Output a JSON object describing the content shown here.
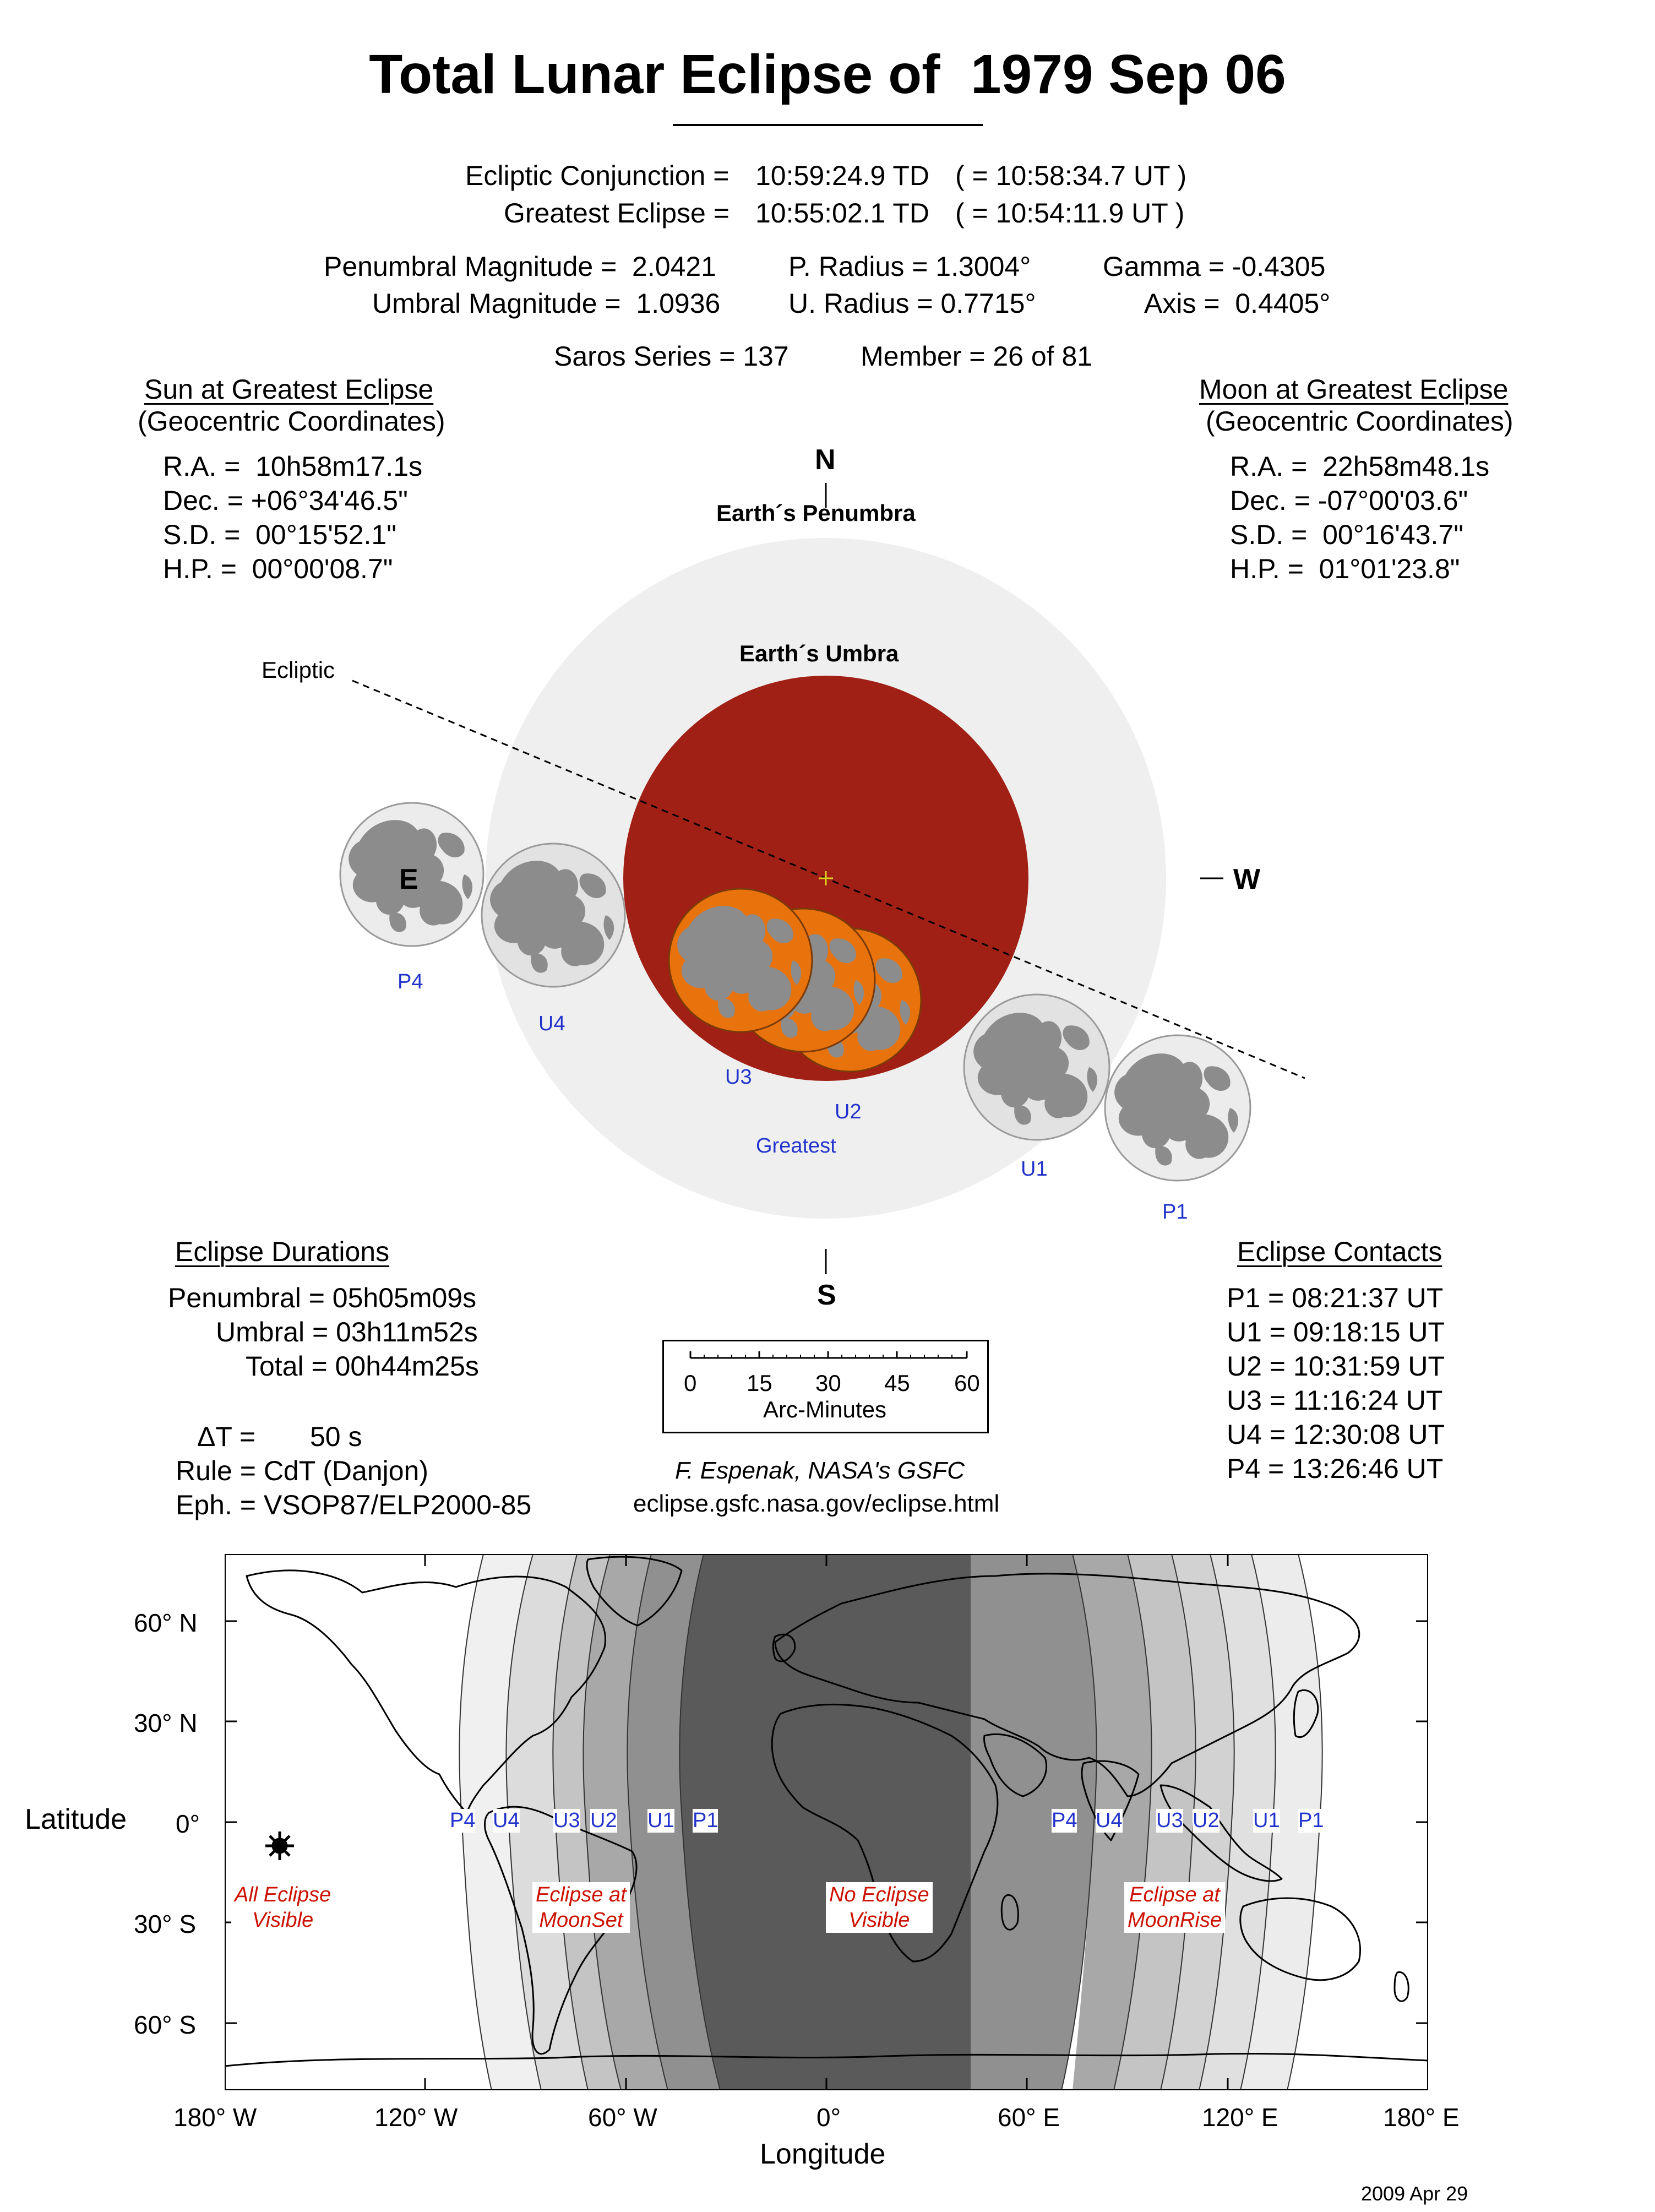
{
  "title": "Total Lunar Eclipse of  1979 Sep 06",
  "conjunction": {
    "label": "Ecliptic Conjunction =",
    "td": "10:59:24.9 TD",
    "ut": "( = 10:58:34.7 UT )"
  },
  "greatest": {
    "label": "Greatest Eclipse =",
    "td": "10:55:02.1 TD",
    "ut": "( = 10:54:11.9 UT )"
  },
  "magnitudes": {
    "penumbral": "Penumbral Magnitude =  2.0421",
    "umbral": "Umbral Magnitude =  1.0936",
    "p_radius": "P. Radius = 1.3004°",
    "u_radius": "U. Radius = 0.7715°",
    "gamma": "Gamma = -0.4305",
    "axis": "Axis =  0.4405°"
  },
  "saros": {
    "series": "Saros Series = 137",
    "member": "Member = 26 of 81"
  },
  "sun": {
    "heading": "Sun at Greatest Eclipse",
    "sub": "(Geocentric Coordinates)",
    "ra": "R.A. =  10h58m17.1s",
    "dec": "Dec. = +06°34'46.5\"",
    "sd": "S.D. =  00°15'52.1\"",
    "hp": "H.P. =  00°00'08.7\""
  },
  "moon": {
    "heading": "Moon at Greatest Eclipse",
    "sub": "(Geocentric Coordinates)",
    "ra": "R.A. =  22h58m48.1s",
    "dec": "Dec. = -07°00'03.6\"",
    "sd": "S.D. =  00°16'43.7\"",
    "hp": "H.P. =  01°01'23.8\""
  },
  "diagram": {
    "north": "N",
    "south": "S",
    "east": "E",
    "west": "W",
    "penumbra_label": "Earth´s Penumbra",
    "umbra_label": "Earth´s Umbra",
    "ecliptic_label": "Ecliptic",
    "contacts": [
      "P4",
      "U4",
      "U3",
      "U2",
      "Greatest",
      "U1",
      "P1"
    ],
    "colors": {
      "penumbra": "#efefef",
      "umbra": "#a02015",
      "eclipsed_moon": "#e8720c",
      "moon": "#ececec",
      "maria": "#8c8c8c"
    }
  },
  "durations": {
    "heading": "Eclipse Durations",
    "penumbral": "Penumbral = 05h05m09s",
    "umbral": "Umbral = 03h11m52s",
    "total": "Total = 00h44m25s"
  },
  "extra": {
    "delta_t": "ΔT =",
    "delta_t_value": "50 s",
    "rule": "Rule = CdT (Danjon)",
    "eph": "Eph. = VSOP87/ELP2000-85"
  },
  "scale": {
    "ticks": [
      "0",
      "15",
      "30",
      "45",
      "60"
    ],
    "label": "Arc-Minutes"
  },
  "credit": {
    "author": "F. Espenak, NASA's GSFC",
    "url": "eclipse.gsfc.nasa.gov/eclipse.html"
  },
  "contacts": {
    "heading": "Eclipse Contacts",
    "p1": "P1 = 08:21:37 UT",
    "u1": "U1 = 09:18:15 UT",
    "u2": "U2 = 10:31:59 UT",
    "u3": "U3 = 11:16:24 UT",
    "u4": "U4 = 12:30:08 UT",
    "p4": "P4 = 13:26:46 UT"
  },
  "map": {
    "lat_labels": [
      "60° N",
      "30° N",
      "0°",
      "30° S",
      "60° S"
    ],
    "lon_labels": [
      "180° W",
      "120° W",
      "60° W",
      "0°",
      "60° E",
      "120° E",
      "180° E"
    ],
    "ylabel": "Latitude",
    "xlabel": "Longitude",
    "zone_labels": [
      "P4",
      "U4",
      "U3",
      "U2",
      "U1",
      "P1"
    ],
    "region_all": [
      "All Eclipse",
      "Visible"
    ],
    "region_moonset": [
      "Eclipse at",
      "MoonSet"
    ],
    "region_none": [
      "No Eclipse",
      "Visible"
    ],
    "region_moonrise": [
      "Eclipse at",
      "MoonRise"
    ]
  },
  "date": "2009 Apr 29"
}
